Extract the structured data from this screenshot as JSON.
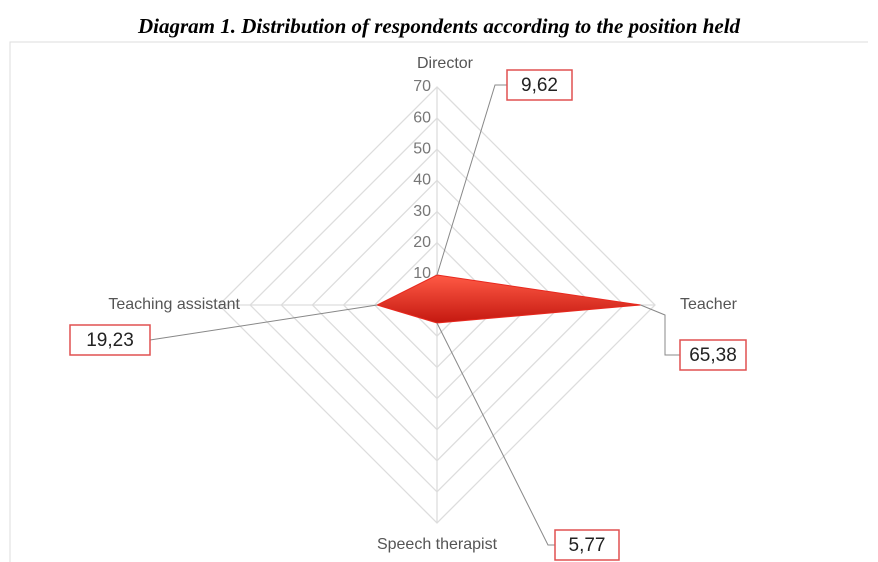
{
  "chart_data": {
    "type": "radar",
    "title": "Diagram 1. Distribution of respondents according to the position held",
    "categories": [
      "Director",
      "Teacher",
      "Speech therapist",
      "Teaching assistant"
    ],
    "values": [
      9.62,
      65.38,
      5.77,
      19.23
    ],
    "value_labels": [
      "9,62",
      "65,38",
      "5,77",
      "19,23"
    ],
    "color": "#e8281e",
    "ylim": [
      0,
      70
    ],
    "yticks": [
      0,
      10,
      20,
      30,
      40,
      50,
      60,
      70
    ],
    "grid": true
  }
}
